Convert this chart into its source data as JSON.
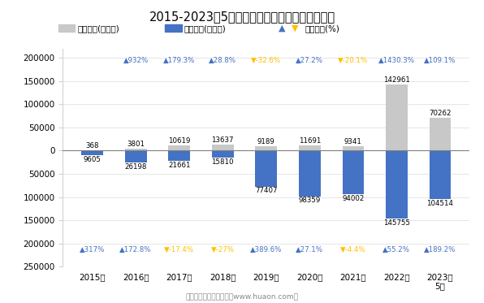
{
  "title": "2015-2023年5月阿拉山口综合保税区进、出口额",
  "years": [
    "2015年",
    "2016年",
    "2017年",
    "2018年",
    "2019年",
    "2020年",
    "2021年",
    "2022年",
    "2023年\n5月"
  ],
  "export_values": [
    368,
    3801,
    10619,
    13637,
    9189,
    11691,
    9341,
    142961,
    70262
  ],
  "import_values": [
    9605,
    26198,
    21661,
    15810,
    77407,
    98359,
    94002,
    145755,
    104514
  ],
  "export_growth": [
    "▲932%",
    "▲179.3%",
    "▲28.8%",
    "▼-32.6%",
    "▲27.2%",
    "▼-20.1%",
    "▲1430.3%",
    "▲109.1%"
  ],
  "import_growth": [
    "▲317%",
    "▲172.8%",
    "▼-17.4%",
    "▼-27%",
    "▲389.6%",
    "▲27.1%",
    "▼-4.4%",
    "▲55.2%",
    "▲189.2%"
  ],
  "export_growth_positive": [
    true,
    true,
    true,
    false,
    true,
    false,
    true,
    true
  ],
  "import_growth_positive": [
    true,
    true,
    false,
    false,
    true,
    true,
    false,
    true,
    true
  ],
  "export_color": "#c8c8c8",
  "import_color": "#4472c4",
  "growth_up_color": "#4472c4",
  "growth_down_color": "#ffc000",
  "legend_label_export": "出口总额(万美元)",
  "legend_label_import": "进口总额(万美元)",
  "legend_label_growth": "同比增速(%)",
  "ylim_min": -250000,
  "ylim_max": 220000,
  "yticks": [
    -250000,
    -200000,
    -150000,
    -100000,
    -50000,
    0,
    50000,
    100000,
    150000,
    200000
  ],
  "footer": "制图：华经产业研究院（www.huaon.com）",
  "background_color": "#ffffff"
}
